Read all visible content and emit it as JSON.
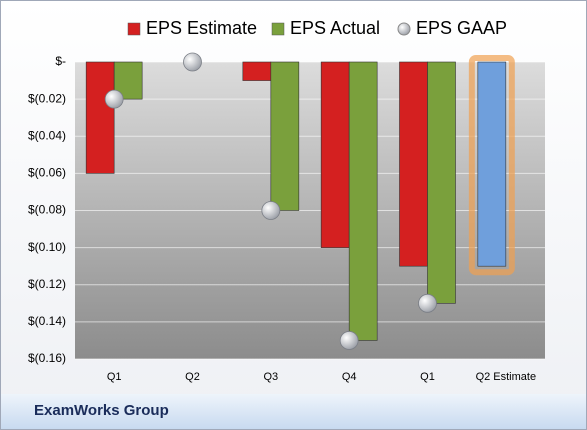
{
  "chart_data": {
    "type": "bar",
    "categories": [
      "Q1",
      "Q2",
      "Q3",
      "Q4",
      "Q1",
      "Q2 Estimate"
    ],
    "series": [
      {
        "name": "EPS Estimate",
        "color": "#d42020",
        "values": [
          -0.06,
          null,
          -0.01,
          -0.1,
          -0.11,
          -0.11
        ],
        "point_colors": [
          null,
          null,
          null,
          null,
          null,
          "#6f9fdc"
        ]
      },
      {
        "name": "EPS Actual",
        "color": "#7aa03c",
        "values": [
          -0.02,
          null,
          -0.08,
          -0.15,
          -0.13,
          null
        ]
      },
      {
        "name": "EPS GAAP",
        "color": "#b8bcc4",
        "type": "scatter",
        "values": [
          -0.02,
          0,
          -0.08,
          -0.15,
          -0.13,
          null
        ]
      }
    ],
    "ylim": [
      -0.16,
      0
    ],
    "yticks": [
      {
        "value": 0,
        "label": "$-"
      },
      {
        "value": -0.02,
        "label": "$(0.02)"
      },
      {
        "value": -0.04,
        "label": "$(0.04)"
      },
      {
        "value": -0.06,
        "label": "$(0.06)"
      },
      {
        "value": -0.08,
        "label": "$(0.08)"
      },
      {
        "value": -0.1,
        "label": "$(0.10)"
      },
      {
        "value": -0.12,
        "label": "$(0.12)"
      },
      {
        "value": -0.14,
        "label": "$(0.14)"
      },
      {
        "value": -0.16,
        "label": "$(0.16)"
      }
    ],
    "grid": true,
    "legend": "top",
    "footer": "ExamWorks Group"
  }
}
